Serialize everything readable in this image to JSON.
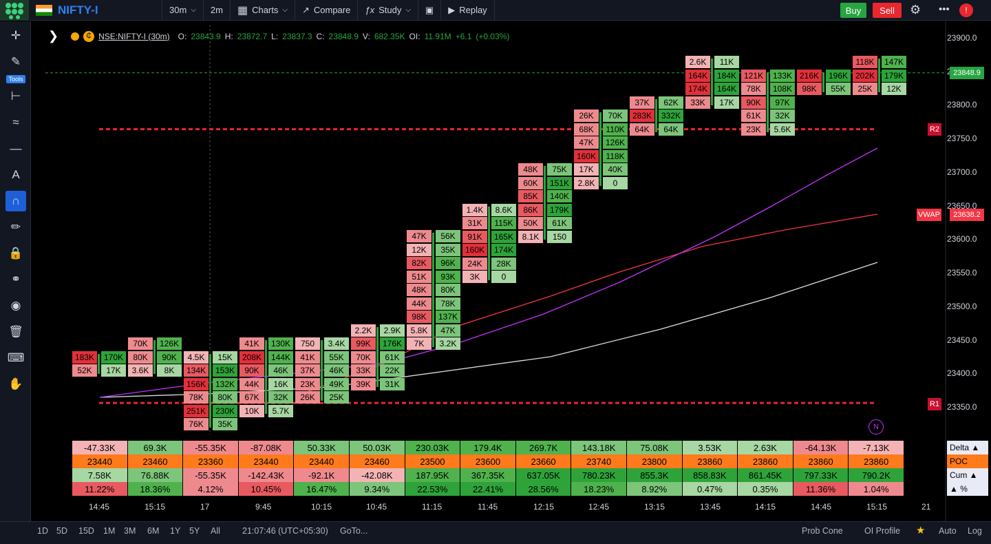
{
  "topbar": {
    "symbol": "NIFTY-I",
    "interval": "30m",
    "sub_interval": "2m",
    "charts": "Charts",
    "compare": "Compare",
    "study": "Study",
    "replay": "Replay",
    "buy": "Buy",
    "sell": "Sell"
  },
  "left_tools": {
    "tools_label": "Tools"
  },
  "legend": {
    "title": "NSE:NIFTY-I (30m)",
    "o_label": "O:",
    "o": "23843.9",
    "h_label": "H:",
    "h": "23872.7",
    "l_label": "L:",
    "l": "23837.3",
    "c_label": "C:",
    "c": "23848.9",
    "v_label": "V:",
    "v": "682.35K",
    "oi_label": "OI:",
    "oi": "11.91M",
    "chg": "+6.1",
    "chg_pct": "(+0.03%)"
  },
  "price_axis": [
    "23900.0",
    "23850.0",
    "23800.0",
    "23750.0",
    "23700.0",
    "23650.0",
    "23600.0",
    "23550.0",
    "23500.0",
    "23450.0",
    "23400.0",
    "23350.0"
  ],
  "tags": {
    "last": "23848.9",
    "vwap_label": "VWAP",
    "vwap": "23638.2",
    "r2": "R2",
    "r1": "R1",
    "n": "N"
  },
  "time_axis": [
    "14:45",
    "15:15",
    "17",
    "9:45",
    "10:15",
    "10:45",
    "11:15",
    "11:45",
    "12:15",
    "12:45",
    "13:15",
    "13:45",
    "14:15",
    "14:45",
    "15:15",
    "21"
  ],
  "footprint": [
    {
      "buy": [
        "183K",
        "52K"
      ],
      "sell": [],
      "top": 23425
    },
    {
      "buy": [
        "170K",
        "17K"
      ],
      "sell": [],
      "top": 23425
    },
    {
      "buy": [
        "70K",
        "80K",
        "3.6K"
      ],
      "sell": [],
      "top": 23445
    },
    {
      "buy": [
        "126K",
        "90K",
        "8K"
      ],
      "sell": [],
      "top": 23445
    },
    {
      "buy": [
        "4.5K",
        "134K",
        "156K",
        "78K",
        "251K",
        "76K"
      ],
      "sell": [],
      "top": 23425
    },
    {
      "buy": [
        "15K",
        "153K",
        "132K",
        "80K",
        "230K",
        "35K"
      ],
      "sell": [],
      "top": 23425
    },
    {
      "buy": [
        "41K",
        "208K",
        "90K",
        "44K",
        "67K",
        "10K"
      ],
      "sell": [],
      "top": 23445
    },
    {
      "buy": [
        "130K",
        "144K",
        "46K",
        "16K",
        "32K",
        "5.7K"
      ],
      "sell": [],
      "top": 23445
    },
    {
      "buy": [
        "750",
        "41K",
        "37K",
        "23K",
        "26K"
      ],
      "sell": [],
      "top": 23445
    },
    {
      "buy": [
        "3.4K",
        "55K",
        "46K",
        "49K",
        "25K"
      ],
      "sell": [],
      "top": 23445
    },
    {
      "buy": [
        "2.2K",
        "99K",
        "70K",
        "33K",
        "39K"
      ],
      "sell": [],
      "top": 23465
    },
    {
      "buy": [
        "2.9K",
        "176K",
        "61K",
        "22K",
        "31K"
      ],
      "sell": [],
      "top": 23465
    },
    {
      "buy": [
        "47K",
        "12K",
        "82K",
        "51K",
        "48K",
        "44K",
        "98K",
        "5.8K",
        "7K"
      ],
      "sell": [],
      "top": 23605
    },
    {
      "buy": [
        "56K",
        "35K",
        "96K",
        "93K",
        "80K",
        "78K",
        "137K",
        "47K",
        "3.2K"
      ],
      "sell": [],
      "top": 23605
    },
    {
      "buy": [
        "1.4K",
        "31K",
        "91K",
        "160K",
        "24K",
        "3K"
      ],
      "sell": [],
      "top": 23645
    },
    {
      "buy": [
        "8.6K",
        "115K",
        "165K",
        "174K",
        "28K",
        "0"
      ],
      "sell": [],
      "top": 23645
    },
    {
      "buy": [
        "48K",
        "60K",
        "85K",
        "86K",
        "50K",
        "8.1K"
      ],
      "sell": [],
      "top": 23705
    },
    {
      "buy": [
        "75K",
        "151K",
        "140K",
        "179K",
        "61K",
        "150"
      ],
      "sell": [],
      "top": 23705
    },
    {
      "buy": [
        "26K",
        "68K",
        "47K",
        "160K",
        "17K",
        "2.8K"
      ],
      "sell": [],
      "top": 23785
    },
    {
      "buy": [
        "70K",
        "110K",
        "126K",
        "118K",
        "40K",
        "0"
      ],
      "sell": [],
      "top": 23785
    },
    {
      "buy": [
        "37K",
        "283K",
        "64K"
      ],
      "sell": [],
      "top": 23805
    },
    {
      "buy": [
        "62K",
        "332K",
        "64K"
      ],
      "sell": [],
      "top": 23805
    },
    {
      "buy": [
        "2.6K",
        "164K",
        "174K",
        "33K"
      ],
      "sell": [],
      "top": 23865
    },
    {
      "buy": [
        "11K",
        "184K",
        "164K",
        "17K"
      ],
      "sell": [],
      "top": 23865
    },
    {
      "buy": [
        "121K",
        "78K",
        "90K",
        "61K",
        "23K"
      ],
      "sell": [],
      "top": 23845
    },
    {
      "buy": [
        "133K",
        "108K",
        "97K",
        "32K",
        "5.6K"
      ],
      "sell": [],
      "top": 23845
    },
    {
      "buy": [
        "216K",
        "98K"
      ],
      "sell": [],
      "top": 23845
    },
    {
      "buy": [
        "196K",
        "55K"
      ],
      "sell": [],
      "top": 23845
    },
    {
      "buy": [
        "118K",
        "202K",
        "25K"
      ],
      "sell": [],
      "top": 23865
    },
    {
      "buy": [
        "147K",
        "179K",
        "12K"
      ],
      "sell": [],
      "top": 23865
    }
  ],
  "stats": {
    "delta": [
      "-47.33K",
      "69.3K",
      "-55.35K",
      "-87.08K",
      "50.33K",
      "50.03K",
      "230.03K",
      "179.4K",
      "269.7K",
      "143.18K",
      "75.08K",
      "3.53K",
      "2.63K",
      "-64.13K",
      "-7.13K"
    ],
    "poc": [
      "23440",
      "23460",
      "23360",
      "23440",
      "23440",
      "23460",
      "23500",
      "23600",
      "23660",
      "23740",
      "23800",
      "23860",
      "23860",
      "23860",
      "23860"
    ],
    "cum": [
      "7.58K",
      "76.88K",
      "-55.35K",
      "-142.43K",
      "-92.1K",
      "-42.08K",
      "187.95K",
      "367.35K",
      "637.05K",
      "780.23K",
      "855.3K",
      "858.83K",
      "861.45K",
      "797.33K",
      "790.2K"
    ],
    "pct": [
      "11.22%",
      "18.36%",
      "4.12%",
      "10.45%",
      "16.47%",
      "9.34%",
      "22.53%",
      "22.41%",
      "28.56%",
      "18.23%",
      "8.92%",
      "0.47%",
      "0.35%",
      "11.36%",
      "1.04%"
    ],
    "labels": {
      "delta": "Delta ▲",
      "poc": "POC",
      "cum": "Cum ▲",
      "pct": "▲ %"
    }
  },
  "bottombar": {
    "ranges": [
      "1D",
      "5D",
      "15D",
      "1M",
      "3M",
      "6M",
      "1Y",
      "5Y",
      "All"
    ],
    "clock": "21:07:46 (UTC+05:30)",
    "goto": "GoTo...",
    "prob_cone": "Prob Cone",
    "oi_profile": "OI Profile",
    "auto": "Auto",
    "log": "Log"
  },
  "colors": {
    "green": "#26a541",
    "red": "#e8282e",
    "accent": "#2f80ed",
    "vwap": "#f23645"
  }
}
